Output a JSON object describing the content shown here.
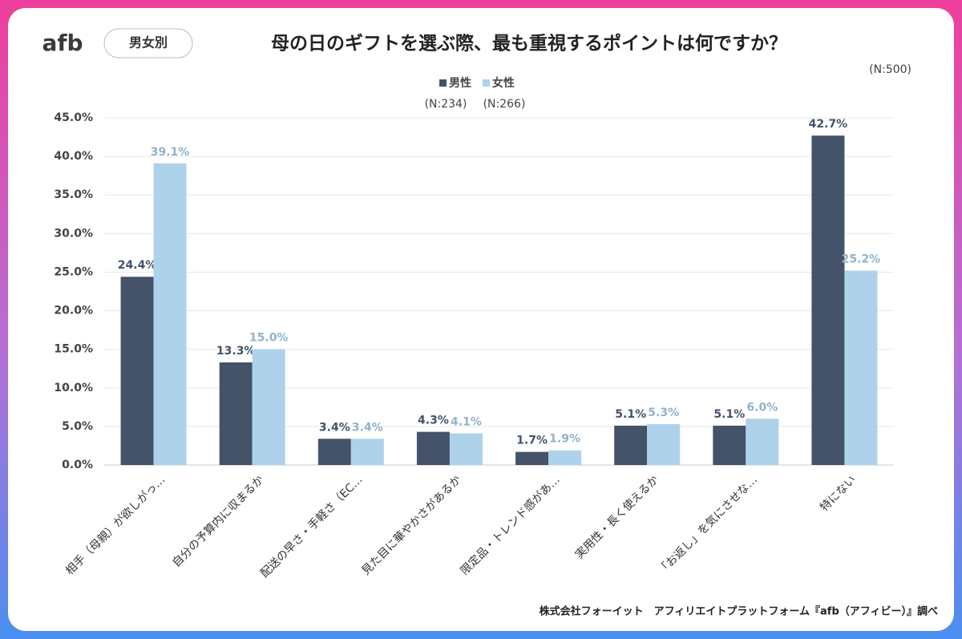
{
  "chart_data": {
    "type": "bar",
    "logo": "afb",
    "badge": "男女別",
    "title": "母の日のギフトを選ぶ際、最も重視するポイントは何ですか？",
    "total_note": "(N:500)",
    "source": "株式会社フォーイット　アフィリエイトプラットフォーム『afb（アフィビー）』調べ",
    "categories": [
      "相手（母親）が欲しがっ…",
      "自分の予算内に収まるか",
      "配送の早さ・手軽さ（EC…",
      "見た目に華やかさがあるか",
      "限定品・トレンド感があ…",
      "実用性・長く使えるか",
      "「お返し」を気にさせな…",
      "特にない"
    ],
    "series": [
      {
        "name": "男性",
        "note": "(N:234)",
        "color": "#44536a",
        "label_color": "#44536a",
        "values": [
          24.4,
          13.3,
          3.4,
          4.3,
          1.7,
          5.1,
          5.1,
          42.7
        ],
        "value_labels": [
          "24.4%",
          "13.3%",
          "3.4%",
          "4.3%",
          "1.7%",
          "5.1%",
          "5.1%",
          "42.7%"
        ]
      },
      {
        "name": "女性",
        "note": "(N:266)",
        "color": "#aed2ea",
        "label_color": "#8fb3cc",
        "values": [
          39.1,
          15.0,
          3.4,
          4.1,
          1.9,
          5.3,
          6.0,
          25.2
        ],
        "value_labels": [
          "39.1%",
          "15.0%",
          "3.4%",
          "4.1%",
          "1.9%",
          "5.3%",
          "6.0%",
          "25.2%"
        ]
      }
    ],
    "ylim": [
      0,
      45
    ],
    "yticks": [
      {
        "value": 0,
        "label": "0.0%"
      },
      {
        "value": 5,
        "label": "5.0%"
      },
      {
        "value": 10,
        "label": "10.0%"
      },
      {
        "value": 15,
        "label": "15.0%"
      },
      {
        "value": 20,
        "label": "20.0%"
      },
      {
        "value": 25,
        "label": "25.0%"
      },
      {
        "value": 30,
        "label": "30.0%"
      },
      {
        "value": 35,
        "label": "35.0%"
      },
      {
        "value": 40,
        "label": "40.0%"
      },
      {
        "value": 45,
        "label": "45.0%"
      }
    ],
    "grid": true
  }
}
